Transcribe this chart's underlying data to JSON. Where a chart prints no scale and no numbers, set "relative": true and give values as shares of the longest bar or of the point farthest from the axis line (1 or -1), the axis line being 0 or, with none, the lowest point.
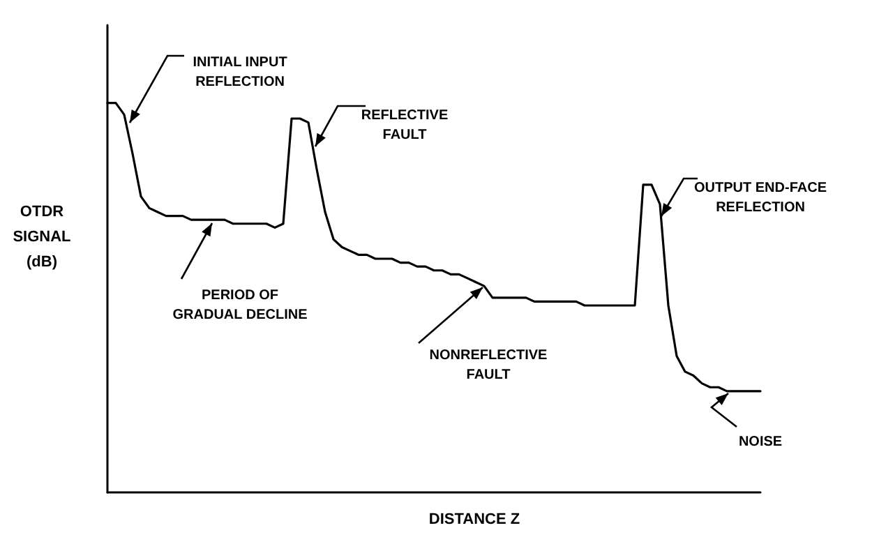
{
  "chart_data": {
    "type": "line",
    "relative": true,
    "xlabel": "DISTANCE Z",
    "ylabel": "OTDR SIGNAL (dB)",
    "categories": [
      null,
      null,
      null,
      null,
      null,
      null,
      null,
      null,
      null,
      null,
      null,
      null,
      null,
      null,
      null,
      null,
      null,
      null,
      null,
      null,
      null,
      null,
      null,
      null,
      null,
      null,
      null,
      null,
      null,
      null,
      null,
      null,
      null,
      null,
      null,
      null,
      null,
      null,
      null,
      null,
      null,
      null,
      null,
      null,
      null,
      null,
      null,
      null,
      null,
      null,
      null,
      null,
      null,
      null,
      null,
      null,
      null,
      null,
      null,
      null,
      null,
      null,
      null,
      null,
      null,
      null,
      null,
      null,
      null,
      null,
      null,
      null,
      null,
      null,
      null,
      null,
      null,
      null,
      null
    ],
    "series": [
      {
        "color": "#000000",
        "values": [
          1,
          1,
          0.97,
          0.87,
          0.76,
          0.73,
          0.72,
          0.71,
          0.71,
          0.71,
          0.7,
          0.7,
          0.7,
          0.7,
          0.7,
          0.69,
          0.69,
          0.69,
          0.69,
          0.69,
          0.68,
          0.69,
          0.96,
          0.96,
          0.95,
          0.83,
          0.72,
          0.65,
          0.63,
          0.62,
          0.61,
          0.61,
          0.6,
          0.6,
          0.6,
          0.59,
          0.59,
          0.58,
          0.58,
          0.57,
          0.57,
          0.56,
          0.56,
          0.55,
          0.54,
          0.53,
          0.5,
          0.5,
          0.5,
          0.5,
          0.5,
          0.49,
          0.49,
          0.49,
          0.49,
          0.49,
          0.49,
          0.48,
          0.48,
          0.48,
          0.48,
          0.48,
          0.48,
          0.48,
          0.79,
          0.79,
          0.74,
          0.48,
          0.35,
          0.31,
          0.3,
          0.28,
          0.27,
          0.27,
          0.26,
          0.26,
          0.26,
          0.26,
          0.26
        ]
      }
    ],
    "annotations": [
      "INITIAL INPUT REFLECTION",
      "REFLECTIVE FAULT",
      "PERIOD OF GRADUAL DECLINE",
      "NONREFLECTIVE FAULT",
      "OUTPUT END-FACE REFLECTION",
      "NOISE"
    ],
    "grid": false,
    "marker": "none",
    "line_style": "solid"
  }
}
